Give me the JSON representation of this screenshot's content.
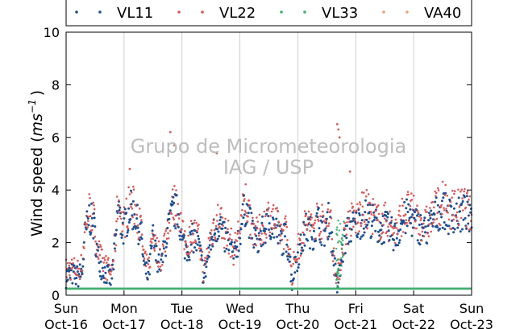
{
  "chart_data": {
    "type": "scatter",
    "ylabel_prefix": "Wind speed (",
    "ylabel_unit": "ms",
    "ylabel_exp": "−1",
    "ylabel_suffix": ")",
    "ylim": [
      0,
      10
    ],
    "yticks": [
      "0",
      "2",
      "4",
      "6",
      "8",
      "10"
    ],
    "xticks": [
      {
        "day": "Sun",
        "date": "Oct-16"
      },
      {
        "day": "Mon",
        "date": "Oct-17"
      },
      {
        "day": "Tue",
        "date": "Oct-18"
      },
      {
        "day": "Wed",
        "date": "Oct-19"
      },
      {
        "day": "Thu",
        "date": "Oct-20"
      },
      {
        "day": "Fri",
        "date": "Oct-21"
      },
      {
        "day": "Sat",
        "date": "Oct-22"
      },
      {
        "day": "Sun",
        "date": "Oct-23"
      }
    ],
    "grid": "vertical",
    "legend_position": "top",
    "watermark": [
      "Grupo de Micrometeorologia",
      "IAG / USP"
    ],
    "series": [
      {
        "name": "VL11",
        "color": "#1f4e8c",
        "marker": "dot"
      },
      {
        "name": "VL22",
        "color": "#d45a5a",
        "marker": "dot"
      },
      {
        "name": "VL33",
        "color": "#3fae6e",
        "marker": "dot"
      },
      {
        "name": "VA40",
        "color": "#e8a27a",
        "marker": "dot"
      }
    ],
    "profile_vl11": [
      [
        0.0,
        0.7
      ],
      [
        0.1,
        0.8
      ],
      [
        0.2,
        0.7
      ],
      [
        0.28,
        0.9
      ],
      [
        0.32,
        2.2
      ],
      [
        0.4,
        3.0
      ],
      [
        0.48,
        2.6
      ],
      [
        0.55,
        1.5
      ],
      [
        0.62,
        1.0
      ],
      [
        0.7,
        0.8
      ],
      [
        0.78,
        0.6
      ],
      [
        0.85,
        1.8
      ],
      [
        0.9,
        3.5
      ],
      [
        0.95,
        2.6
      ],
      [
        1.0,
        2.5
      ],
      [
        1.1,
        3.3
      ],
      [
        1.2,
        3.0
      ],
      [
        1.3,
        2.2
      ],
      [
        1.35,
        1.0
      ],
      [
        1.42,
        0.7
      ],
      [
        1.5,
        2.2
      ],
      [
        1.55,
        1.5
      ],
      [
        1.65,
        1.2
      ],
      [
        1.75,
        2.4
      ],
      [
        1.85,
        3.2
      ],
      [
        1.95,
        3.1
      ],
      [
        2.0,
        2.0
      ],
      [
        2.1,
        1.8
      ],
      [
        2.2,
        2.2
      ],
      [
        2.3,
        1.8
      ],
      [
        2.38,
        0.6
      ],
      [
        2.45,
        1.5
      ],
      [
        2.55,
        2.4
      ],
      [
        2.65,
        2.8
      ],
      [
        2.72,
        2.2
      ],
      [
        2.8,
        2.0
      ],
      [
        2.9,
        1.4
      ],
      [
        3.0,
        2.4
      ],
      [
        3.1,
        3.4
      ],
      [
        3.2,
        2.5
      ],
      [
        3.3,
        2.0
      ],
      [
        3.4,
        2.4
      ],
      [
        3.5,
        2.8
      ],
      [
        3.6,
        2.6
      ],
      [
        3.7,
        2.1
      ],
      [
        3.8,
        2.2
      ],
      [
        3.85,
        1.6
      ],
      [
        3.9,
        0.5
      ],
      [
        3.95,
        1.2
      ],
      [
        4.05,
        1.8
      ],
      [
        4.15,
        2.6
      ],
      [
        4.25,
        2.3
      ],
      [
        4.35,
        2.8
      ],
      [
        4.45,
        2.4
      ],
      [
        4.5,
        2.6
      ],
      [
        4.55,
        3.0
      ],
      [
        4.6,
        1.7
      ],
      [
        4.68,
        0.3
      ],
      [
        4.72,
        0.8
      ],
      [
        4.8,
        2.0
      ],
      [
        4.9,
        2.6
      ],
      [
        5.0,
        2.6
      ],
      [
        5.1,
        2.9
      ],
      [
        5.2,
        3.0
      ],
      [
        5.3,
        2.8
      ],
      [
        5.4,
        2.5
      ],
      [
        5.5,
        2.6
      ],
      [
        5.6,
        2.4
      ],
      [
        5.7,
        2.2
      ],
      [
        5.8,
        2.8
      ],
      [
        5.9,
        3.0
      ],
      [
        6.0,
        2.8
      ],
      [
        6.1,
        2.6
      ],
      [
        6.2,
        2.4
      ],
      [
        6.3,
        2.7
      ],
      [
        6.4,
        3.1
      ],
      [
        6.5,
        3.3
      ],
      [
        6.6,
        3.0
      ],
      [
        6.7,
        3.1
      ],
      [
        6.8,
        3.0
      ],
      [
        6.9,
        3.2
      ],
      [
        7.0,
        2.6
      ]
    ],
    "baseline_vl33": 0.25
  }
}
